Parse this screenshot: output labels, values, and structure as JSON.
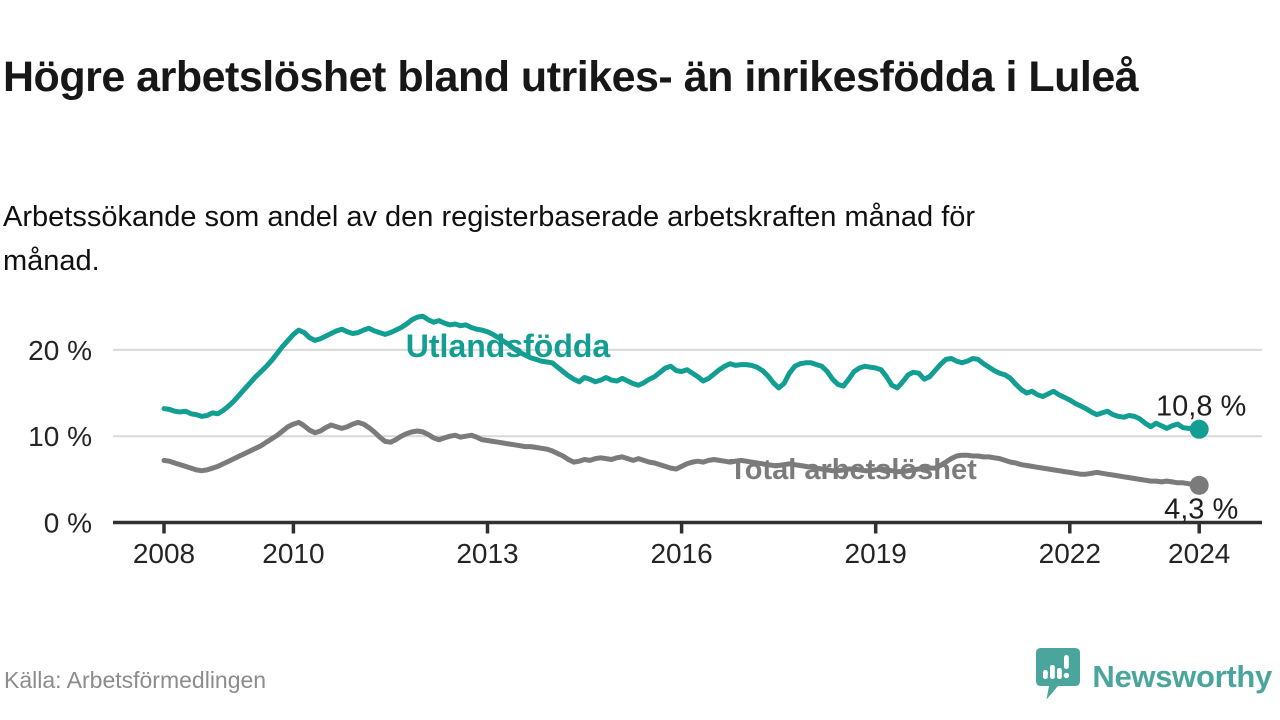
{
  "header": {
    "title": "Högre arbetslöshet bland utrikes- än inrikesfödda i Luleå",
    "subtitle": "Arbetssökande som andel av den registerbaserade arbetskraften månad för månad."
  },
  "footer": {
    "source": "Källa: Arbetsförmedlingen",
    "brand": "Newsworthy",
    "brand_icon": "newsworthy-speech-bubble-bar-chart-icon",
    "brand_color": "#4aa69d"
  },
  "theme": {
    "grid_color": "#d9d9d9",
    "axis_color": "#303030",
    "tick_label_color": "#242424",
    "end_label_color": "#1e1e1e",
    "title_color": "#171717",
    "source_color": "#8c8c8c"
  },
  "chart_data": {
    "type": "line",
    "title": "Högre arbetslöshet bland utrikes- än inrikesfödda i Luleå",
    "xlabel": "",
    "ylabel": "Arbetssökande som andel av den registerbaserade arbetskraften",
    "x_unit": "months from 2008-01 to 2024-01",
    "x_start_year": 2008,
    "x_end_year": 2024,
    "ylim": [
      0,
      25
    ],
    "grid": "horizontal",
    "legend_position": "inline-on-line",
    "y_axis": {
      "ticks": [
        {
          "value": 0,
          "label": "0 %"
        },
        {
          "value": 10,
          "label": "10 %"
        },
        {
          "value": 20,
          "label": "20 %"
        }
      ]
    },
    "x_axis_ticks": [
      {
        "year": 2008,
        "label": "2008"
      },
      {
        "year": 2010,
        "label": "2010"
      },
      {
        "year": 2013,
        "label": "2013"
      },
      {
        "year": 2016,
        "label": "2016"
      },
      {
        "year": 2019,
        "label": "2019"
      },
      {
        "year": 2022,
        "label": "2022"
      },
      {
        "year": 2024,
        "label": "2024"
      }
    ],
    "series": [
      {
        "id": "utlandsfodda",
        "name": "Utlandsfödda",
        "color": "#129e92",
        "end_label": "10,8 %",
        "end_value": 10.8,
        "values": [
          13.2,
          13.1,
          12.9,
          12.8,
          12.9,
          12.6,
          12.5,
          12.3,
          12.4,
          12.7,
          12.6,
          13.0,
          13.5,
          14.1,
          14.8,
          15.5,
          16.2,
          16.9,
          17.5,
          18.1,
          18.8,
          19.6,
          20.4,
          21.1,
          21.8,
          22.3,
          22.0,
          21.4,
          21.1,
          21.3,
          21.6,
          21.9,
          22.2,
          22.4,
          22.1,
          21.9,
          22.0,
          22.3,
          22.5,
          22.2,
          22.0,
          21.8,
          22.0,
          22.3,
          22.6,
          23.0,
          23.5,
          23.8,
          23.9,
          23.5,
          23.2,
          23.4,
          23.1,
          22.9,
          23.0,
          22.8,
          22.9,
          22.6,
          22.4,
          22.3,
          22.1,
          21.8,
          21.4,
          21.0,
          20.6,
          20.1,
          19.7,
          19.4,
          19.1,
          18.9,
          18.7,
          18.6,
          18.5,
          18.0,
          17.5,
          17.0,
          16.6,
          16.3,
          16.8,
          16.6,
          16.3,
          16.5,
          16.8,
          16.5,
          16.4,
          16.7,
          16.4,
          16.1,
          15.9,
          16.2,
          16.6,
          16.9,
          17.4,
          17.9,
          18.1,
          17.6,
          17.5,
          17.7,
          17.3,
          16.9,
          16.4,
          16.7,
          17.2,
          17.7,
          18.1,
          18.4,
          18.2,
          18.3,
          18.3,
          18.2,
          18.0,
          17.6,
          17.0,
          16.2,
          15.6,
          16.1,
          17.3,
          18.1,
          18.4,
          18.5,
          18.5,
          18.3,
          18.1,
          17.5,
          16.6,
          16.0,
          15.8,
          16.6,
          17.5,
          17.9,
          18.1,
          18.0,
          17.9,
          17.7,
          16.9,
          15.9,
          15.6,
          16.3,
          17.1,
          17.4,
          17.3,
          16.6,
          16.9,
          17.6,
          18.3,
          18.9,
          19.0,
          18.7,
          18.5,
          18.7,
          19.0,
          18.9,
          18.4,
          18.0,
          17.6,
          17.3,
          17.1,
          16.7,
          16.0,
          15.4,
          15.0,
          15.2,
          14.8,
          14.6,
          14.9,
          15.2,
          14.8,
          14.5,
          14.2,
          13.8,
          13.5,
          13.2,
          12.8,
          12.5,
          12.7,
          12.9,
          12.5,
          12.3,
          12.2,
          12.4,
          12.3,
          12.0,
          11.5,
          11.1,
          11.5,
          11.2,
          10.9,
          11.2,
          11.4,
          11.0,
          10.9,
          10.9,
          10.8
        ]
      },
      {
        "id": "total",
        "name": "Total arbetslöshet",
        "color": "#7b7b7b",
        "end_label": "4,3 %",
        "end_value": 4.3,
        "values": [
          7.2,
          7.1,
          6.9,
          6.7,
          6.5,
          6.3,
          6.1,
          6.0,
          6.1,
          6.3,
          6.5,
          6.8,
          7.1,
          7.4,
          7.7,
          8.0,
          8.3,
          8.6,
          8.9,
          9.3,
          9.7,
          10.1,
          10.6,
          11.1,
          11.4,
          11.6,
          11.2,
          10.7,
          10.4,
          10.6,
          11.0,
          11.3,
          11.1,
          10.9,
          11.1,
          11.4,
          11.6,
          11.4,
          11.0,
          10.5,
          9.9,
          9.4,
          9.3,
          9.6,
          10.0,
          10.3,
          10.5,
          10.6,
          10.5,
          10.2,
          9.8,
          9.6,
          9.8,
          10.0,
          10.1,
          9.9,
          10.0,
          10.1,
          9.9,
          9.6,
          9.5,
          9.4,
          9.3,
          9.2,
          9.1,
          9.0,
          8.9,
          8.8,
          8.8,
          8.7,
          8.6,
          8.5,
          8.3,
          8.0,
          7.7,
          7.3,
          7.0,
          7.1,
          7.3,
          7.2,
          7.4,
          7.5,
          7.4,
          7.3,
          7.5,
          7.6,
          7.4,
          7.2,
          7.4,
          7.2,
          7.0,
          6.9,
          6.7,
          6.5,
          6.3,
          6.2,
          6.5,
          6.8,
          7.0,
          7.1,
          7.0,
          7.2,
          7.3,
          7.2,
          7.1,
          7.0,
          7.1,
          7.2,
          7.1,
          7.0,
          6.9,
          6.8,
          6.7,
          6.6,
          6.6,
          6.7,
          6.8,
          6.7,
          6.6,
          6.5,
          6.4,
          6.3,
          6.2,
          6.1,
          6.0,
          6.0,
          6.1,
          6.2,
          6.2,
          6.1,
          6.0,
          6.0,
          6.1,
          6.2,
          6.1,
          6.0,
          5.9,
          5.9,
          6.0,
          6.1,
          6.2,
          6.2,
          6.3,
          6.3,
          6.6,
          7.0,
          7.4,
          7.7,
          7.8,
          7.8,
          7.7,
          7.7,
          7.6,
          7.6,
          7.5,
          7.4,
          7.2,
          7.0,
          6.9,
          6.7,
          6.6,
          6.5,
          6.4,
          6.3,
          6.2,
          6.1,
          6.0,
          5.9,
          5.8,
          5.7,
          5.6,
          5.6,
          5.7,
          5.8,
          5.7,
          5.6,
          5.5,
          5.4,
          5.3,
          5.2,
          5.1,
          5.0,
          4.9,
          4.8,
          4.8,
          4.7,
          4.8,
          4.7,
          4.6,
          4.6,
          4.5,
          4.4,
          4.3
        ]
      }
    ]
  }
}
